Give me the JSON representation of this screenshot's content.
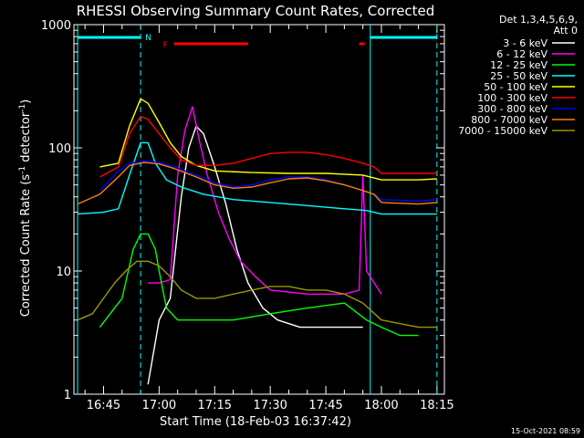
{
  "chart_data": {
    "type": "line",
    "title": "RHESSI Observing Summary Count Rates, Corrected",
    "xlabel": "Start Time (18-Feb-03 16:37:42)",
    "ylabel": "Corrected Count Rate (s⁻¹ detector⁻¹)",
    "ylabel_parts": {
      "main": "Corrected Count Rate (s",
      "sup1": "-1",
      "mid": " detector",
      "sup2": "-1",
      "end": ")"
    },
    "yscale": "log",
    "ylim": [
      1,
      1000
    ],
    "xlim": [
      "16:37",
      "18:17"
    ],
    "xticks": [
      "16:45",
      "17:00",
      "17:15",
      "17:30",
      "17:45",
      "18:00",
      "18:15"
    ],
    "yticks": [
      "1",
      "10",
      "100",
      "1000"
    ],
    "timestamp": "15-Oct-2021 08:59",
    "legend_header": [
      "Det 1,3,4,5,6,9,",
      "Att 0"
    ],
    "legend_position": "right",
    "annotations": {
      "night_marker": "N",
      "flare_marker": "F"
    },
    "night_intervals": [
      [
        "16:38",
        "16:55"
      ],
      [
        "17:57",
        "18:15"
      ]
    ],
    "flare_intervals": [
      [
        "17:04",
        "17:24"
      ],
      [
        "17:54",
        "17:55"
      ]
    ],
    "series": [
      {
        "name": "3 - 6 keV",
        "color": "#ffffff",
        "points": [
          [
            "16:57",
            1.2
          ],
          [
            "17:00",
            4
          ],
          [
            "17:03",
            6
          ],
          [
            "17:06",
            40
          ],
          [
            "17:08",
            100
          ],
          [
            "17:10",
            150
          ],
          [
            "17:12",
            130
          ],
          [
            "17:15",
            70
          ],
          [
            "17:18",
            35
          ],
          [
            "17:21",
            15
          ],
          [
            "17:24",
            8
          ],
          [
            "17:28",
            5
          ],
          [
            "17:32",
            4
          ],
          [
            "17:38",
            3.5
          ],
          [
            "17:45",
            3.5
          ],
          [
            "17:50",
            3.5
          ],
          [
            "17:55",
            3.5
          ]
        ]
      },
      {
        "name": "6 - 12 keV",
        "color": "#ff00ff",
        "points": [
          [
            "16:57",
            8
          ],
          [
            "17:00",
            8
          ],
          [
            "17:03",
            8.5
          ],
          [
            "17:05",
            60
          ],
          [
            "17:07",
            140
          ],
          [
            "17:09",
            215
          ],
          [
            "17:11",
            110
          ],
          [
            "17:13",
            60
          ],
          [
            "17:16",
            30
          ],
          [
            "17:19",
            18
          ],
          [
            "17:22",
            12
          ],
          [
            "17:26",
            9
          ],
          [
            "17:30",
            7
          ],
          [
            "17:40",
            6.5
          ],
          [
            "17:50",
            6.5
          ],
          [
            "17:54",
            7
          ],
          [
            "17:55",
            60
          ],
          [
            "17:56",
            10
          ],
          [
            "18:00",
            6.5
          ]
        ]
      },
      {
        "name": "12 - 25 keV",
        "color": "#00ff00",
        "points": [
          [
            "16:44",
            3.5
          ],
          [
            "16:50",
            6
          ],
          [
            "16:53",
            15
          ],
          [
            "16:55",
            20
          ],
          [
            "16:57",
            20
          ],
          [
            "16:59",
            15
          ],
          [
            "17:00",
            10
          ],
          [
            "17:02",
            5
          ],
          [
            "17:05",
            4
          ],
          [
            "17:10",
            4
          ],
          [
            "17:20",
            4
          ],
          [
            "17:30",
            4.5
          ],
          [
            "17:40",
            5
          ],
          [
            "17:50",
            5.5
          ],
          [
            "17:56",
            4
          ],
          [
            "18:00",
            3.5
          ],
          [
            "18:05",
            3
          ],
          [
            "18:10",
            3
          ]
        ]
      },
      {
        "name": "25 - 50 keV",
        "color": "#00ffff",
        "points": [
          [
            "16:38",
            29
          ],
          [
            "16:45",
            30
          ],
          [
            "16:49",
            32
          ],
          [
            "16:52",
            60
          ],
          [
            "16:55",
            110
          ],
          [
            "16:57",
            110
          ],
          [
            "16:59",
            75
          ],
          [
            "17:02",
            55
          ],
          [
            "17:06",
            48
          ],
          [
            "17:12",
            42
          ],
          [
            "17:20",
            38
          ],
          [
            "17:30",
            36
          ],
          [
            "17:40",
            34
          ],
          [
            "17:50",
            32
          ],
          [
            "17:56",
            31
          ],
          [
            "18:00",
            29
          ],
          [
            "18:10",
            29
          ],
          [
            "18:15",
            29
          ]
        ]
      },
      {
        "name": "50 - 100 keV",
        "color": "#ffff00",
        "points": [
          [
            "16:44",
            70
          ],
          [
            "16:49",
            75
          ],
          [
            "16:52",
            150
          ],
          [
            "16:55",
            250
          ],
          [
            "16:57",
            230
          ],
          [
            "17:00",
            160
          ],
          [
            "17:03",
            110
          ],
          [
            "17:06",
            85
          ],
          [
            "17:10",
            72
          ],
          [
            "17:15",
            65
          ],
          [
            "17:25",
            63
          ],
          [
            "17:35",
            62
          ],
          [
            "17:45",
            62
          ],
          [
            "17:55",
            60
          ],
          [
            "18:00",
            55
          ],
          [
            "18:10",
            55
          ],
          [
            "18:15",
            56
          ]
        ]
      },
      {
        "name": "100 - 300 keV",
        "color": "#ff0000",
        "points": [
          [
            "16:44",
            58
          ],
          [
            "16:49",
            70
          ],
          [
            "16:52",
            130
          ],
          [
            "16:55",
            180
          ],
          [
            "16:57",
            170
          ],
          [
            "17:00",
            130
          ],
          [
            "17:03",
            100
          ],
          [
            "17:06",
            80
          ],
          [
            "17:10",
            72
          ],
          [
            "17:15",
            72
          ],
          [
            "17:20",
            75
          ],
          [
            "17:25",
            82
          ],
          [
            "17:30",
            90
          ],
          [
            "17:35",
            92
          ],
          [
            "17:40",
            92
          ],
          [
            "17:45",
            88
          ],
          [
            "17:50",
            82
          ],
          [
            "17:55",
            75
          ],
          [
            "17:58",
            70
          ],
          [
            "18:00",
            62
          ],
          [
            "18:10",
            62
          ],
          [
            "18:15",
            62
          ]
        ]
      },
      {
        "name": "300 - 800 keV",
        "color": "#0000ff",
        "points": [
          [
            "16:44",
            45
          ],
          [
            "16:49",
            65
          ],
          [
            "16:52",
            75
          ],
          [
            "16:56",
            78
          ],
          [
            "17:00",
            76
          ],
          [
            "17:04",
            70
          ],
          [
            "17:10",
            60
          ],
          [
            "17:15",
            52
          ],
          [
            "17:20",
            48
          ],
          [
            "17:25",
            50
          ],
          [
            "17:30",
            55
          ],
          [
            "17:35",
            58
          ],
          [
            "17:40",
            58
          ],
          [
            "17:45",
            55
          ],
          [
            "17:50",
            50
          ],
          [
            "17:55",
            45
          ],
          [
            "17:58",
            42
          ],
          [
            "18:00",
            38
          ],
          [
            "18:10",
            37
          ],
          [
            "18:15",
            38
          ]
        ]
      },
      {
        "name": "800 - 7000 keV",
        "color": "#ff8000",
        "points": [
          [
            "16:38",
            35
          ],
          [
            "16:44",
            42
          ],
          [
            "16:49",
            58
          ],
          [
            "16:52",
            72
          ],
          [
            "16:56",
            76
          ],
          [
            "17:00",
            74
          ],
          [
            "17:04",
            68
          ],
          [
            "17:10",
            58
          ],
          [
            "17:15",
            50
          ],
          [
            "17:20",
            47
          ],
          [
            "17:25",
            48
          ],
          [
            "17:30",
            52
          ],
          [
            "17:35",
            56
          ],
          [
            "17:40",
            57
          ],
          [
            "17:45",
            54
          ],
          [
            "17:50",
            50
          ],
          [
            "17:55",
            45
          ],
          [
            "17:58",
            42
          ],
          [
            "18:00",
            36
          ],
          [
            "18:10",
            35
          ],
          [
            "18:15",
            36
          ]
        ]
      },
      {
        "name": "7000 - 15000 keV",
        "color": "#999900",
        "points": [
          [
            "16:38",
            4
          ],
          [
            "16:42",
            4.5
          ],
          [
            "16:45",
            6
          ],
          [
            "16:48",
            8
          ],
          [
            "16:51",
            10
          ],
          [
            "16:54",
            12
          ],
          [
            "16:57",
            12
          ],
          [
            "17:00",
            11
          ],
          [
            "17:03",
            9
          ],
          [
            "17:06",
            7
          ],
          [
            "17:10",
            6
          ],
          [
            "17:15",
            6
          ],
          [
            "17:20",
            6.5
          ],
          [
            "17:25",
            7
          ],
          [
            "17:30",
            7.5
          ],
          [
            "17:35",
            7.5
          ],
          [
            "17:40",
            7
          ],
          [
            "17:45",
            7
          ],
          [
            "17:50",
            6.5
          ],
          [
            "17:55",
            5.5
          ],
          [
            "18:00",
            4
          ],
          [
            "18:10",
            3.5
          ],
          [
            "18:15",
            3.5
          ]
        ]
      }
    ]
  }
}
